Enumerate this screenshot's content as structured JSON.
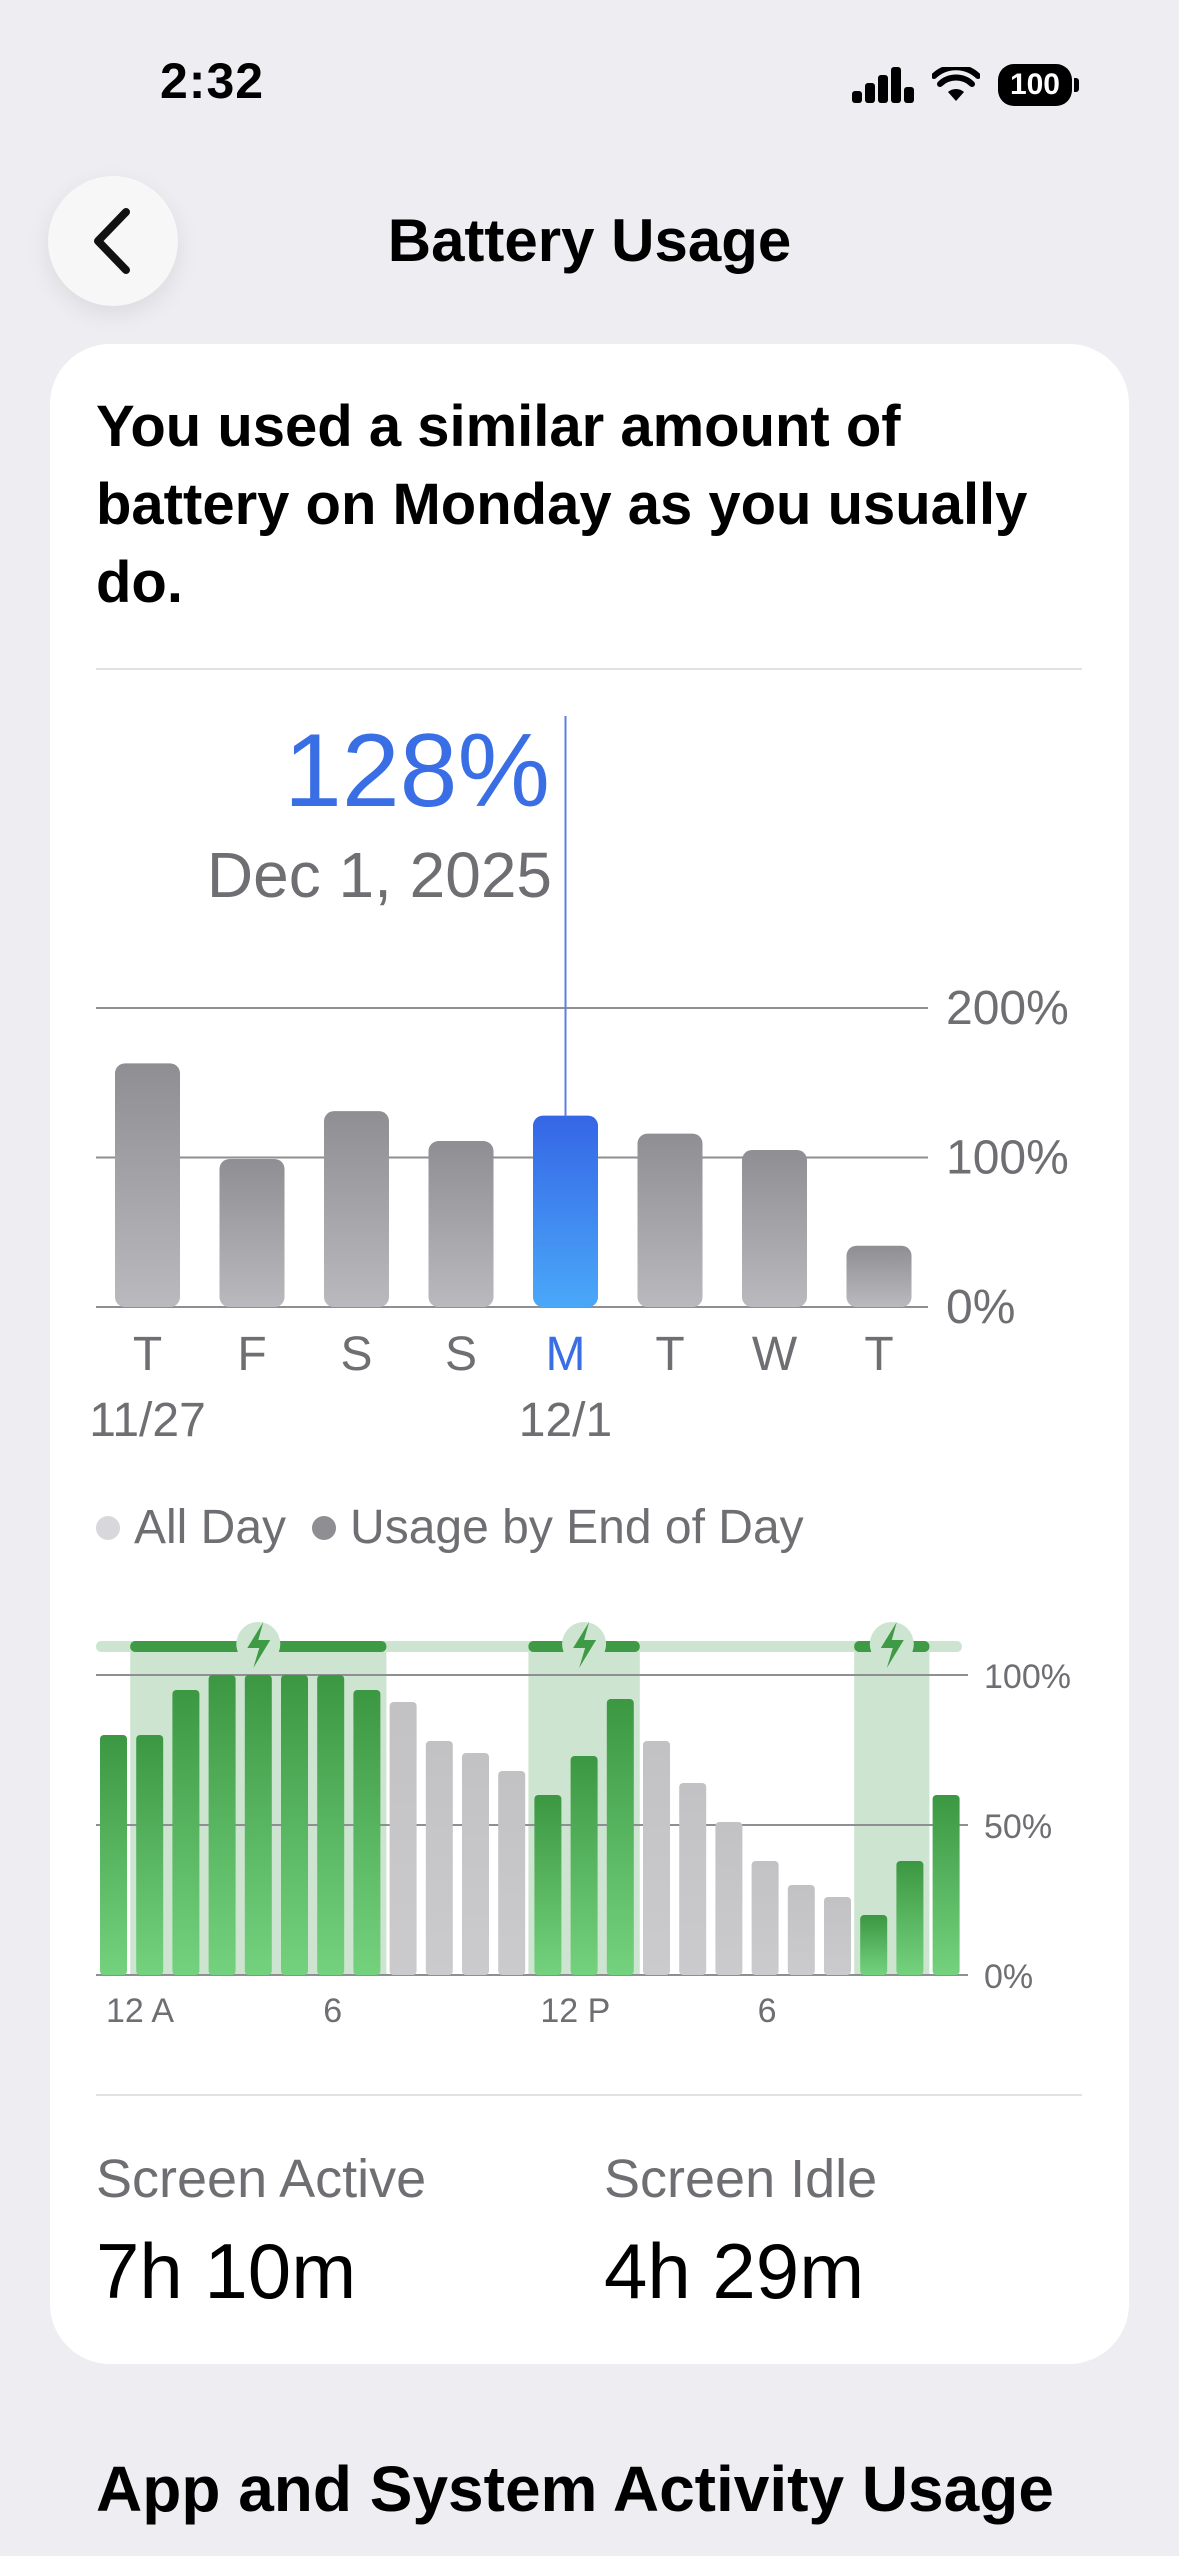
{
  "status_bar": {
    "time": "2:32",
    "battery": "100"
  },
  "nav": {
    "title": "Battery Usage"
  },
  "summary": {
    "headline": "You used a similar amount of battery on Monday as you usually do."
  },
  "selection": {
    "value": "128%",
    "date": "Dec 1, 2025"
  },
  "daily_chart": {
    "type": "bar",
    "categories": [
      "T",
      "F",
      "S",
      "S",
      "M",
      "T",
      "W",
      "T"
    ],
    "date_labels": [
      "11/27",
      "",
      "",
      "",
      "12/1",
      "",
      "",
      ""
    ],
    "values": [
      163,
      99,
      131,
      111,
      128,
      116,
      105,
      41
    ],
    "selected_index": 4,
    "ylim": [
      0,
      200
    ],
    "yticks": [
      "200%",
      "100%",
      "0%"
    ],
    "ytick_values": [
      200,
      100,
      0
    ],
    "colors": {
      "bar": "#9a9aa0",
      "selected": "#3a70ea",
      "selected_label": "#3a6ee4"
    }
  },
  "legend": {
    "all_day": "All Day",
    "end_of_day": "Usage by End of Day"
  },
  "hourly_chart": {
    "type": "bar",
    "values": [
      80,
      80,
      95,
      100,
      100,
      100,
      100,
      95,
      91,
      78,
      74,
      68,
      60,
      73,
      92,
      78,
      64,
      51,
      38,
      30,
      26,
      20,
      38,
      60
    ],
    "charging": [
      true,
      true,
      true,
      true,
      true,
      true,
      true,
      true,
      false,
      false,
      false,
      false,
      true,
      true,
      true,
      false,
      false,
      false,
      false,
      false,
      false,
      true,
      true,
      true
    ],
    "charging_ranges": [
      [
        1,
        7
      ],
      [
        12,
        14
      ],
      [
        21,
        22
      ]
    ],
    "xticks": [
      "12 A",
      "6",
      "12 P",
      "6"
    ],
    "xtick_hours": [
      0,
      6,
      12,
      18
    ],
    "yticks": [
      "100%",
      "50%",
      "0%"
    ],
    "ytick_values": [
      100,
      50,
      0
    ],
    "ylim": [
      0,
      100
    ],
    "colors": {
      "charging": "#3e9a45",
      "discharging": "#c6c6c8",
      "band": "#cde5d0"
    }
  },
  "stats": {
    "screen_active_label": "Screen Active",
    "screen_active_value": "7h 10m",
    "screen_idle_label": "Screen Idle",
    "screen_idle_value": "4h 29m"
  },
  "next_section": {
    "title": "App and System Activity Usage"
  }
}
